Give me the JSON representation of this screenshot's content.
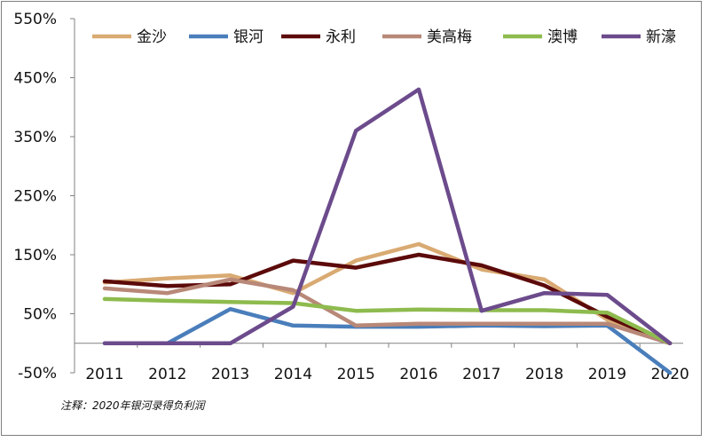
{
  "chart_data": {
    "type": "line",
    "title": "",
    "xlabel": "",
    "ylabel": "",
    "x": [
      "2011",
      "2012",
      "2013",
      "2014",
      "2015",
      "2016",
      "2017",
      "2018",
      "2019",
      "2020"
    ],
    "ylim": [
      -50,
      550
    ],
    "yticks": [
      -50,
      50,
      150,
      250,
      350,
      450,
      550
    ],
    "ytick_labels": [
      "-50%",
      "50%",
      "150%",
      "250%",
      "350%",
      "450%",
      "550%"
    ],
    "grid": false,
    "legend_position": "top",
    "series": [
      {
        "name": "金沙",
        "color": "#d9aa72",
        "values": [
          103,
          110,
          115,
          85,
          140,
          168,
          125,
          108,
          40,
          0
        ]
      },
      {
        "name": "银河",
        "color": "#4a7ebb",
        "values": [
          0,
          0,
          58,
          30,
          28,
          28,
          30,
          29,
          30,
          -50
        ]
      },
      {
        "name": "永利",
        "color": "#5c0a0a",
        "values": [
          105,
          97,
          100,
          140,
          128,
          150,
          132,
          98,
          45,
          0
        ]
      },
      {
        "name": "美高梅",
        "color": "#b88878",
        "values": [
          93,
          85,
          108,
          90,
          30,
          33,
          33,
          33,
          33,
          0
        ]
      },
      {
        "name": "澳博",
        "color": "#8ebb4e",
        "values": [
          75,
          72,
          70,
          68,
          55,
          57,
          56,
          56,
          52,
          0
        ]
      },
      {
        "name": "新濠",
        "color": "#6c4b8c",
        "values": [
          0,
          0,
          0,
          62,
          360,
          430,
          55,
          85,
          82,
          0
        ]
      }
    ]
  },
  "note": "注释：2020年银河录得负利润"
}
